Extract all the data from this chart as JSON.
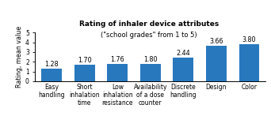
{
  "title": "Rating of inhaler device attributes",
  "subtitle": "(\"school grades\" from 1 to 5)",
  "ylabel": "Rating, mean value",
  "categories": [
    "Easy\nhandling",
    "Short\ninhalation\ntime",
    "Low\ninhalation\nresistance",
    "Availability\nof a dose\ncounter",
    "Discrete\nhandling",
    "Design",
    "Color"
  ],
  "values": [
    1.28,
    1.7,
    1.76,
    1.8,
    2.44,
    3.66,
    3.8
  ],
  "bar_color": "#2878BE",
  "ylim": [
    0,
    5
  ],
  "yticks": [
    0,
    1,
    2,
    3,
    4,
    5
  ],
  "value_labels": [
    "1.28",
    "1.70",
    "1.76",
    "1.80",
    "2.44",
    "3.66",
    "3.80"
  ],
  "background_color": "#ffffff",
  "title_fontsize": 6.5,
  "subtitle_fontsize": 6.0,
  "tick_fontsize": 5.5,
  "value_fontsize": 5.8,
  "ylabel_fontsize": 5.8,
  "bar_width": 0.62
}
